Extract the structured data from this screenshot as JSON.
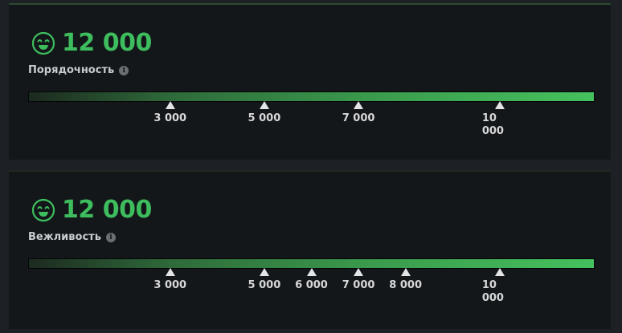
{
  "scale_max": 12000,
  "colors": {
    "accent": "#3dbd5d",
    "panel": "#14171a",
    "background": "#1d2125"
  },
  "panels": [
    {
      "icon": "smiley-face-icon",
      "score": "12 000",
      "score_value": 12000,
      "label": "Порядочность",
      "info_icon": "info-icon",
      "info_glyph": "i",
      "markers": [
        {
          "value": 3000,
          "label": "3 000"
        },
        {
          "value": 5000,
          "label": "5 000"
        },
        {
          "value": 7000,
          "label": "7 000"
        },
        {
          "value": 10000,
          "label": "10 000"
        }
      ]
    },
    {
      "icon": "smiley-face-icon",
      "score": "12 000",
      "score_value": 12000,
      "label": "Вежливость",
      "info_icon": "info-icon",
      "info_glyph": "i",
      "markers": [
        {
          "value": 3000,
          "label": "3 000"
        },
        {
          "value": 5000,
          "label": "5 000"
        },
        {
          "value": 6000,
          "label": "6 000"
        },
        {
          "value": 7000,
          "label": "7 000"
        },
        {
          "value": 8000,
          "label": "8 000"
        },
        {
          "value": 10000,
          "label": "10 000"
        }
      ]
    }
  ]
}
